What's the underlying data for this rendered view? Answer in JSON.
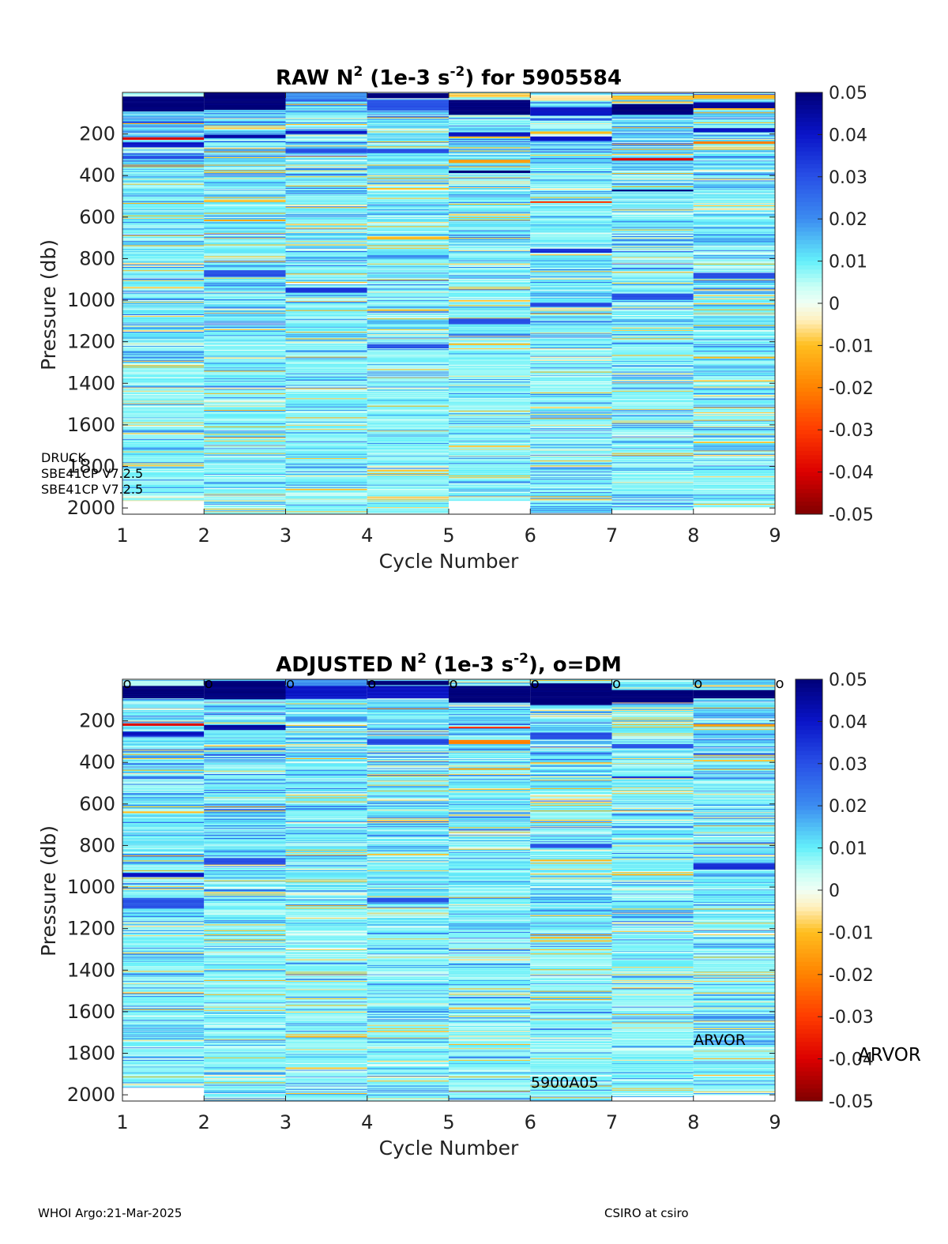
{
  "chart_data": [
    {
      "type": "heatmap",
      "title": {
        "base": "RAW N",
        "sup1": "2",
        "mid": " (1e-3 s",
        "sup2": "-2",
        "end": ") for 5905584"
      },
      "xlabel": "Cycle Number",
      "ylabel": "Pressure (db)",
      "x_ticks": [
        1,
        2,
        3,
        4,
        5,
        6,
        7,
        8,
        9
      ],
      "y_ticks": [
        200,
        400,
        600,
        800,
        1000,
        1200,
        1400,
        1600,
        1800,
        2000
      ],
      "xlim": [
        1,
        9
      ],
      "ylim": [
        0,
        2030
      ],
      "y_reversed": true,
      "colorbar": {
        "ticks": [
          "0.05",
          "0.04",
          "0.03",
          "0.02",
          "0.01",
          "0",
          "-0.01",
          "-0.02",
          "-0.03",
          "-0.04",
          "-0.05"
        ],
        "range": [
          -0.05,
          0.05
        ],
        "colormap": "blue-cyan-white-yellow-red"
      },
      "cycles": [
        {
          "cycle": 1,
          "max_pressure": 1965,
          "features": [
            {
              "p": 20,
              "v": 0.004,
              "h": 30
            },
            {
              "p": 55,
              "v": 0.05,
              "h": 70
            },
            {
              "p": 220,
              "v": -0.04,
              "h": 10
            },
            {
              "p": 250,
              "v": 0.04,
              "h": 20
            },
            {
              "p": 310,
              "v": 0.03,
              "h": 15
            }
          ]
        },
        {
          "cycle": 2,
          "max_pressure": 2030,
          "features": [
            {
              "p": 40,
              "v": 0.05,
              "h": 80
            },
            {
              "p": 170,
              "v": -0.008,
              "h": 10
            },
            {
              "p": 210,
              "v": 0.045,
              "h": 15
            },
            {
              "p": 520,
              "v": -0.01,
              "h": 8
            },
            {
              "p": 615,
              "v": -0.015,
              "h": 8
            },
            {
              "p": 870,
              "v": 0.03,
              "h": 30
            }
          ]
        },
        {
          "cycle": 3,
          "max_pressure": 2030,
          "features": [
            {
              "p": 15,
              "v": 0.02,
              "h": 30
            },
            {
              "p": 190,
              "v": 0.04,
              "h": 15
            },
            {
              "p": 280,
              "v": 0.03,
              "h": 20
            },
            {
              "p": 950,
              "v": 0.035,
              "h": 20
            }
          ]
        },
        {
          "cycle": 4,
          "max_pressure": 2030,
          "features": [
            {
              "p": 15,
              "v": 0.05,
              "h": 25
            },
            {
              "p": 60,
              "v": 0.03,
              "h": 50
            },
            {
              "p": 280,
              "v": 0.03,
              "h": 20
            },
            {
              "p": 700,
              "v": -0.01,
              "h": 10
            },
            {
              "p": 1220,
              "v": 0.03,
              "h": 20
            }
          ]
        },
        {
          "cycle": 5,
          "max_pressure": 1965,
          "features": [
            {
              "p": 15,
              "v": -0.008,
              "h": 15
            },
            {
              "p": 70,
              "v": 0.05,
              "h": 70
            },
            {
              "p": 200,
              "v": 0.04,
              "h": 20
            },
            {
              "p": 330,
              "v": -0.015,
              "h": 15
            },
            {
              "p": 380,
              "v": 0.05,
              "h": 10
            },
            {
              "p": 1100,
              "v": 0.03,
              "h": 30
            }
          ]
        },
        {
          "cycle": 6,
          "max_pressure": 2030,
          "features": [
            {
              "p": 25,
              "v": -0.005,
              "h": 25
            },
            {
              "p": 90,
              "v": 0.04,
              "h": 40
            },
            {
              "p": 220,
              "v": 0.04,
              "h": 20
            },
            {
              "p": 525,
              "v": -0.03,
              "h": 6
            },
            {
              "p": 760,
              "v": 0.035,
              "h": 20
            },
            {
              "p": 1020,
              "v": 0.03,
              "h": 20
            }
          ]
        },
        {
          "cycle": 7,
          "max_pressure": 2010,
          "features": [
            {
              "p": 25,
              "v": -0.01,
              "h": 20
            },
            {
              "p": 80,
              "v": 0.05,
              "h": 50
            },
            {
              "p": 320,
              "v": -0.04,
              "h": 8
            },
            {
              "p": 470,
              "v": 0.05,
              "h": 6
            },
            {
              "p": 980,
              "v": 0.03,
              "h": 30
            }
          ]
        },
        {
          "cycle": 8,
          "max_pressure": 2000,
          "features": [
            {
              "p": 20,
              "v": -0.01,
              "h": 20
            },
            {
              "p": 60,
              "v": 0.045,
              "h": 30
            },
            {
              "p": 180,
              "v": 0.04,
              "h": 20
            },
            {
              "p": 240,
              "v": -0.02,
              "h": 8
            },
            {
              "p": 880,
              "v": 0.03,
              "h": 30
            }
          ]
        }
      ],
      "annotations": [
        "DRUCK",
        "SBE41CP V7.2.5",
        "SBE41CP V7.2.5"
      ]
    },
    {
      "type": "heatmap",
      "title": {
        "base": "ADJUSTED N",
        "sup1": "2",
        "mid": " (1e-3 s",
        "sup2": "-2",
        "end": "), o=DM"
      },
      "xlabel": "Cycle Number",
      "ylabel": "Pressure (db)",
      "x_ticks": [
        1,
        2,
        3,
        4,
        5,
        6,
        7,
        8,
        9
      ],
      "y_ticks": [
        200,
        400,
        600,
        800,
        1000,
        1200,
        1400,
        1600,
        1800,
        2000
      ],
      "xlim": [
        1,
        9
      ],
      "ylim": [
        0,
        2030
      ],
      "y_reversed": true,
      "colorbar": {
        "ticks": [
          "0.05",
          "0.04",
          "0.03",
          "0.02",
          "0.01",
          "0",
          "-0.01",
          "-0.02",
          "-0.03",
          "-0.04",
          "-0.05"
        ],
        "range": [
          -0.05,
          0.05
        ],
        "colormap": "blue-cyan-white-yellow-red"
      },
      "dm_markers": {
        "symbol": "o",
        "cycles": [
          1,
          2,
          3,
          4,
          5,
          6,
          7,
          8,
          9
        ],
        "pressure": 15
      },
      "cycles": [
        {
          "cycle": 1,
          "max_pressure": 1965,
          "features": [
            {
              "p": 20,
              "v": 0.004,
              "h": 30
            },
            {
              "p": 60,
              "v": 0.05,
              "h": 60
            },
            {
              "p": 215,
              "v": -0.04,
              "h": 10
            },
            {
              "p": 260,
              "v": 0.04,
              "h": 20
            },
            {
              "p": 940,
              "v": 0.04,
              "h": 20
            },
            {
              "p": 1080,
              "v": 0.03,
              "h": 40
            }
          ]
        },
        {
          "cycle": 2,
          "max_pressure": 2030,
          "features": [
            {
              "p": 50,
              "v": 0.05,
              "h": 90
            },
            {
              "p": 230,
              "v": 0.045,
              "h": 20
            },
            {
              "p": 875,
              "v": 0.03,
              "h": 30
            }
          ]
        },
        {
          "cycle": 3,
          "max_pressure": 2030,
          "features": [
            {
              "p": 15,
              "v": 0.02,
              "h": 30
            },
            {
              "p": 60,
              "v": 0.04,
              "h": 60
            },
            {
              "p": 190,
              "v": 0.02,
              "h": 20
            },
            {
              "p": 1870,
              "v": -0.01,
              "h": 6
            }
          ]
        },
        {
          "cycle": 4,
          "max_pressure": 2030,
          "features": [
            {
              "p": 15,
              "v": 0.05,
              "h": 20
            },
            {
              "p": 60,
              "v": 0.04,
              "h": 60
            },
            {
              "p": 300,
              "v": 0.03,
              "h": 30
            },
            {
              "p": 1060,
              "v": 0.03,
              "h": 20
            }
          ]
        },
        {
          "cycle": 5,
          "max_pressure": 2030,
          "features": [
            {
              "p": 70,
              "v": 0.05,
              "h": 80
            },
            {
              "p": 230,
              "v": -0.03,
              "h": 10
            },
            {
              "p": 300,
              "v": -0.02,
              "h": 20
            },
            {
              "p": 430,
              "v": -0.015,
              "h": 10
            }
          ]
        },
        {
          "cycle": 6,
          "max_pressure": 2030,
          "features": [
            {
              "p": 70,
              "v": 0.05,
              "h": 100
            },
            {
              "p": 270,
              "v": 0.03,
              "h": 30
            },
            {
              "p": 800,
              "v": 0.03,
              "h": 20
            }
          ]
        },
        {
          "cycle": 7,
          "max_pressure": 2010,
          "features": [
            {
              "p": 80,
              "v": 0.05,
              "h": 60
            },
            {
              "p": 320,
              "v": 0.03,
              "h": 20
            },
            {
              "p": 470,
              "v": 0.035,
              "h": 10
            }
          ]
        },
        {
          "cycle": 8,
          "max_pressure": 2000,
          "features": [
            {
              "p": 70,
              "v": 0.05,
              "h": 40
            },
            {
              "p": 220,
              "v": -0.015,
              "h": 10
            },
            {
              "p": 390,
              "v": -0.01,
              "h": 8
            },
            {
              "p": 900,
              "v": 0.035,
              "h": 30
            }
          ]
        }
      ],
      "annotations": [
        "ARVOR",
        "ARVOR",
        "5900A05"
      ]
    }
  ],
  "footer": {
    "left": "WHOI Argo:21-Mar-2025",
    "right": "CSIRO at csiro"
  }
}
